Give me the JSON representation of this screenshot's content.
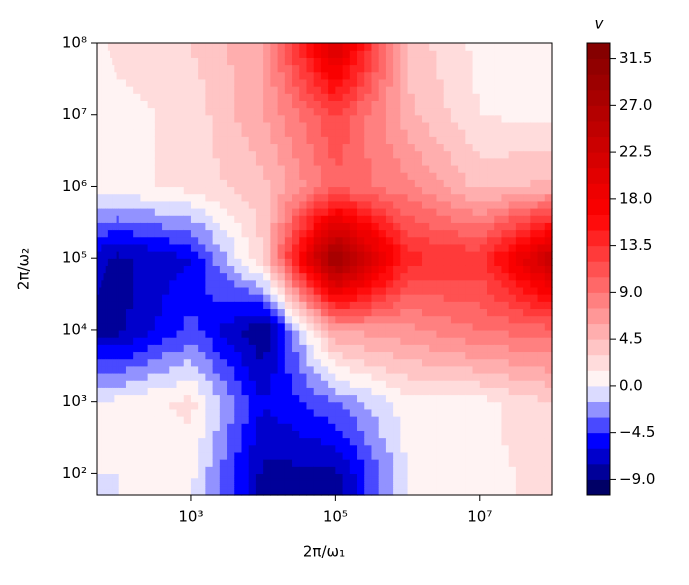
{
  "chart_data": {
    "type": "contourf",
    "xlabel": "2π/ω₁",
    "ylabel": "2π/ω₂",
    "colorbar_label": "v",
    "x": [
      50,
      100,
      1000,
      10000,
      100000,
      1000000,
      10000000,
      100000000
    ],
    "y": [
      50,
      100,
      1000,
      10000,
      100000,
      1000000,
      10000000,
      100000000
    ],
    "z": [
      [
        0,
        0,
        0,
        -8,
        -8,
        0,
        1,
        2
      ],
      [
        0,
        0,
        0.5,
        -8,
        -8,
        0,
        1,
        2
      ],
      [
        0,
        0.5,
        2,
        -6,
        -3,
        1,
        1,
        3
      ],
      [
        -8,
        -8,
        -4,
        -9,
        6,
        7,
        9,
        10
      ],
      [
        -7,
        -8,
        -6,
        3,
        30,
        14,
        13,
        24
      ],
      [
        1,
        1,
        2,
        4,
        10,
        8,
        4,
        5
      ],
      [
        0.5,
        1,
        2,
        6,
        12,
        5,
        1.5,
        1
      ],
      [
        1,
        2,
        3,
        6,
        22,
        4,
        1,
        1
      ]
    ],
    "xscale": "log",
    "yscale": "log",
    "xlim": [
      50,
      100000000
    ],
    "ylim": [
      50,
      100000000
    ],
    "xticks": [
      {
        "value": 1000,
        "label": "10³"
      },
      {
        "value": 100000,
        "label": "10⁵"
      },
      {
        "value": 10000000,
        "label": "10⁷"
      }
    ],
    "yticks": [
      {
        "value": 100,
        "label": "10²"
      },
      {
        "value": 1000,
        "label": "10³"
      },
      {
        "value": 10000,
        "label": "10⁴"
      },
      {
        "value": 100000,
        "label": "10⁵"
      },
      {
        "value": 1000000,
        "label": "10⁶"
      },
      {
        "value": 10000000,
        "label": "10⁷"
      },
      {
        "value": 100000000,
        "label": "10⁸"
      }
    ],
    "cmap": "seismic",
    "center": 0,
    "levels": [
      -10.5,
      -9,
      -7.5,
      -6,
      -4.5,
      -3,
      -1.5,
      0,
      1.5,
      3,
      4.5,
      6,
      7.5,
      9,
      10.5,
      12,
      13.5,
      15,
      16.5,
      18,
      19.5,
      21,
      22.5,
      24,
      25.5,
      27,
      28.5,
      30,
      31.5,
      33
    ],
    "cticks": [
      {
        "value": -9,
        "label": "−9.0"
      },
      {
        "value": -4.5,
        "label": "−4.5"
      },
      {
        "value": 0,
        "label": "0.0"
      },
      4.5,
      {
        "value": 9,
        "label": "9.0"
      },
      13.5,
      {
        "value": 18,
        "label": "18.0"
      },
      22.5,
      {
        "value": 27,
        "label": "27.0"
      },
      31.5
    ]
  }
}
